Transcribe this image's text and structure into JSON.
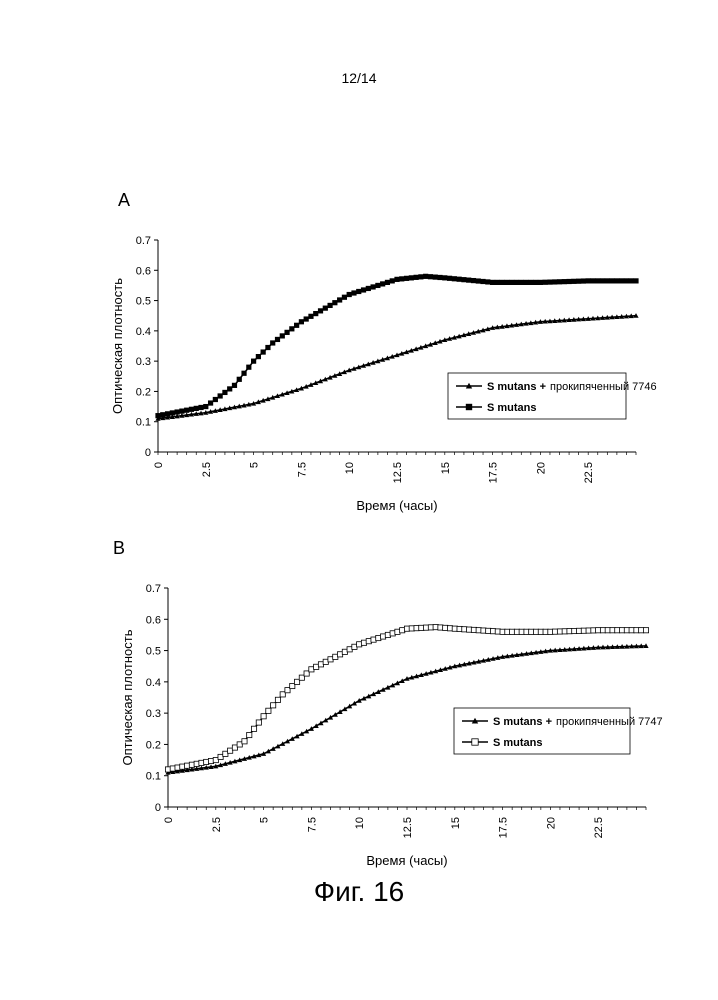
{
  "page": {
    "page_number": "12/14",
    "figure_caption": "Фиг. 16"
  },
  "chart_data": [
    {
      "panel_label": "A",
      "type": "line",
      "xlabel": "Время (часы)",
      "ylabel": "Оптическая плотность",
      "ylim": [
        0,
        0.7
      ],
      "yticks": [
        "0",
        "0.1",
        "0.2",
        "0.3",
        "0.4",
        "0.5",
        "0.6",
        "0.7"
      ],
      "xlim": [
        0,
        25
      ],
      "xticks": [
        "0",
        "2.5",
        "5",
        "7.5",
        "10",
        "12.5",
        "15",
        "17.5",
        "20",
        "22.5"
      ],
      "grid": false,
      "legend_position": "right-middle",
      "series": [
        {
          "name_bold": "S mutans +",
          "name_rest": "прокипяченный 7746",
          "marker": "triangle-filled",
          "x": [
            0,
            2.5,
            5,
            7.5,
            10,
            12.5,
            15,
            17.5,
            20,
            22.5,
            25
          ],
          "y": [
            0.11,
            0.13,
            0.16,
            0.21,
            0.27,
            0.32,
            0.37,
            0.41,
            0.43,
            0.44,
            0.45
          ]
        },
        {
          "name_bold": "S mutans",
          "name_rest": "",
          "marker": "square-filled",
          "x": [
            0,
            2.5,
            4,
            5,
            6,
            7.5,
            10,
            12.5,
            14,
            15,
            17.5,
            20,
            22.5,
            25
          ],
          "y": [
            0.12,
            0.15,
            0.22,
            0.3,
            0.36,
            0.43,
            0.52,
            0.57,
            0.58,
            0.575,
            0.56,
            0.56,
            0.565,
            0.565
          ]
        }
      ]
    },
    {
      "panel_label": "B",
      "type": "line",
      "xlabel": "Время (часы)",
      "ylabel": "Оптическая плотность",
      "ylim": [
        0,
        0.7
      ],
      "yticks": [
        "0",
        "0.1",
        "0.2",
        "0.3",
        "0.4",
        "0.5",
        "0.6",
        "0.7"
      ],
      "xlim": [
        0,
        25
      ],
      "xticks": [
        "0",
        "2.5",
        "5",
        "7.5",
        "10",
        "12.5",
        "15",
        "17.5",
        "20",
        "22.5"
      ],
      "grid": false,
      "legend_position": "right-middle",
      "series": [
        {
          "name_bold": "S mutans +",
          "name_rest": "прокипяченный 7747",
          "marker": "triangle-filled",
          "x": [
            0,
            2.5,
            5,
            7.5,
            10,
            12.5,
            15,
            17.5,
            20,
            22.5,
            25
          ],
          "y": [
            0.11,
            0.13,
            0.17,
            0.25,
            0.34,
            0.41,
            0.45,
            0.48,
            0.5,
            0.51,
            0.515
          ]
        },
        {
          "name_bold": "S mutans",
          "name_rest": "",
          "marker": "square-open",
          "x": [
            0,
            2.5,
            4,
            5,
            6,
            7.5,
            10,
            12.5,
            14,
            15,
            17.5,
            20,
            22.5,
            25
          ],
          "y": [
            0.12,
            0.15,
            0.21,
            0.29,
            0.36,
            0.44,
            0.52,
            0.57,
            0.575,
            0.57,
            0.56,
            0.56,
            0.565,
            0.565
          ]
        }
      ]
    }
  ]
}
